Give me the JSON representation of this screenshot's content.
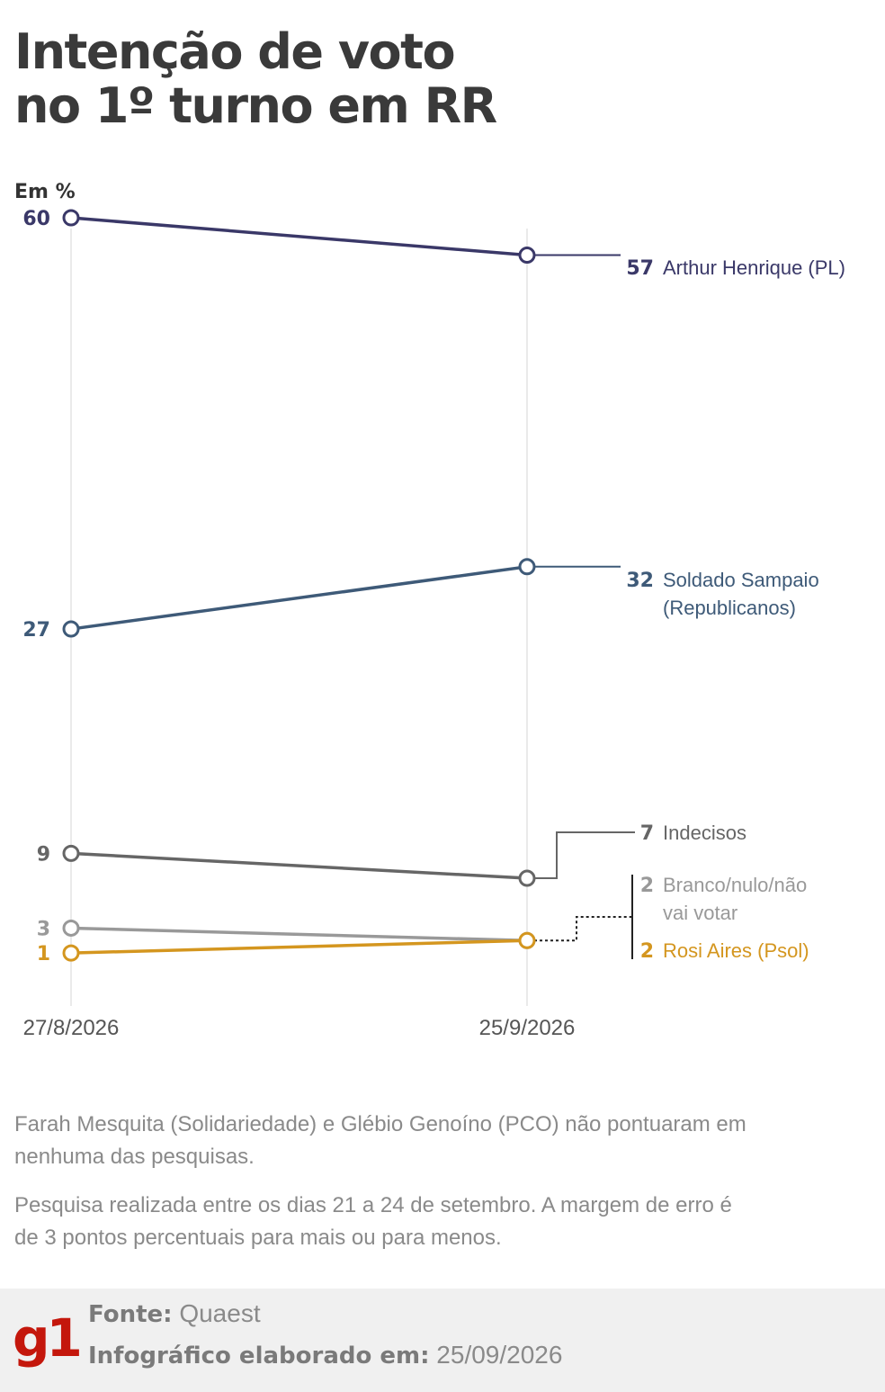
{
  "title_lines": [
    "Intenção de voto",
    "no 1º turno em RR"
  ],
  "chart_data": {
    "type": "line",
    "title": "Intenção de voto no 1º turno em RR",
    "ylabel": "Em %",
    "x": [
      "27/8/2026",
      "25/9/2026"
    ],
    "ylim": [
      0,
      60
    ],
    "grid": "vertical lines at each date",
    "series": [
      {
        "name": "Arthur Henrique (PL)",
        "label_lines": [
          "Arthur Henrique (PL)"
        ],
        "values": [
          60,
          57
        ],
        "start_label": "60",
        "end_label": "57",
        "color": "#3a3868"
      },
      {
        "name": "Soldado Sampaio (Republicanos)",
        "label_lines": [
          "Soldado Sampaio",
          "(Republicanos)"
        ],
        "values": [
          27,
          32
        ],
        "start_label": "27",
        "end_label": "32",
        "color": "#3e5a78"
      },
      {
        "name": "Indecisos",
        "label_lines": [
          "Indecisos"
        ],
        "values": [
          9,
          7
        ],
        "start_label": "9",
        "end_label": "7",
        "color": "#666666"
      },
      {
        "name": "Branco/nulo/não vai votar",
        "label_lines": [
          "Branco/nulo/não",
          "vai votar"
        ],
        "values": [
          3,
          2
        ],
        "start_label": "3",
        "end_label": "2",
        "color": "#999999"
      },
      {
        "name": "Rosi Aires (Psol)",
        "label_lines": [
          "Rosi Aires (Psol)"
        ],
        "values": [
          1,
          2
        ],
        "start_label": "1",
        "end_label": "2",
        "color": "#d4961f"
      }
    ]
  },
  "notes": [
    "Farah Mesquita (Solidariedade) e Glébio Genoíno (PCO) não pontuaram em nenhuma das pesquisas.",
    "Pesquisa realizada entre os dias 21 a 24 de setembro. A margem de erro é de 3 pontos percentuais para mais ou para menos."
  ],
  "footer": {
    "logo": "g1",
    "source_label": "Fonte:",
    "source_value": "Quaest",
    "made_label": "Infográfico elaborado em:",
    "made_value": "25/09/2026"
  },
  "colors": {
    "logo": "#c4170c",
    "footer_bg": "#f0f0f0",
    "grid": "#dddddd"
  }
}
